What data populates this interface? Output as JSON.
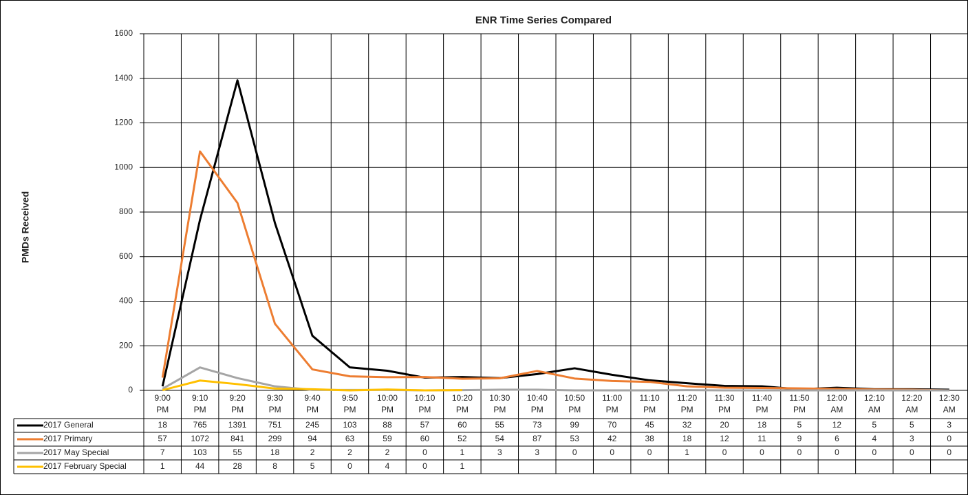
{
  "chart_data": {
    "type": "line",
    "title": "ENR Time Series Compared",
    "y_label": "PMDs Received",
    "categories": [
      "9:00 PM",
      "9:10 PM",
      "9:20 PM",
      "9:30 PM",
      "9:40 PM",
      "9:50 PM",
      "10:00 PM",
      "10:10 PM",
      "10:20 PM",
      "10:30 PM",
      "10:40 PM",
      "10:50 PM",
      "11:00 PM",
      "11:10 PM",
      "11:20 PM",
      "11:30 PM",
      "11:40 PM",
      "11:50 PM",
      "12:00 AM",
      "12:10 AM",
      "12:20 AM",
      "12:30 AM"
    ],
    "series": [
      {
        "name": "2017 General",
        "color": "#000000",
        "values": [
          18,
          765,
          1391,
          751,
          245,
          103,
          88,
          57,
          60,
          55,
          73,
          99,
          70,
          45,
          32,
          20,
          18,
          5,
          12,
          5,
          5,
          3
        ]
      },
      {
        "name": "2017 Primary",
        "color": "#ed7d31",
        "values": [
          57,
          1072,
          841,
          299,
          94,
          63,
          59,
          60,
          52,
          54,
          87,
          53,
          42,
          38,
          18,
          12,
          11,
          9,
          6,
          4,
          3,
          0
        ]
      },
      {
        "name": "2017 May Special",
        "color": "#a5a5a5",
        "values": [
          7,
          103,
          55,
          18,
          2,
          2,
          2,
          0,
          1,
          3,
          3,
          0,
          0,
          0,
          1,
          0,
          0,
          0,
          0,
          0,
          0,
          0
        ]
      },
      {
        "name": "2017 February Special",
        "color": "#ffc000",
        "values": [
          1,
          44,
          28,
          8,
          5,
          0,
          4,
          0,
          1,
          null,
          null,
          null,
          null,
          null,
          null,
          null,
          null,
          null,
          null,
          null,
          null,
          null
        ]
      }
    ],
    "ylim": [
      0,
      1600
    ],
    "yticks": [
      0,
      200,
      400,
      600,
      800,
      1000,
      1200,
      1400,
      1600
    ],
    "grid": true
  }
}
